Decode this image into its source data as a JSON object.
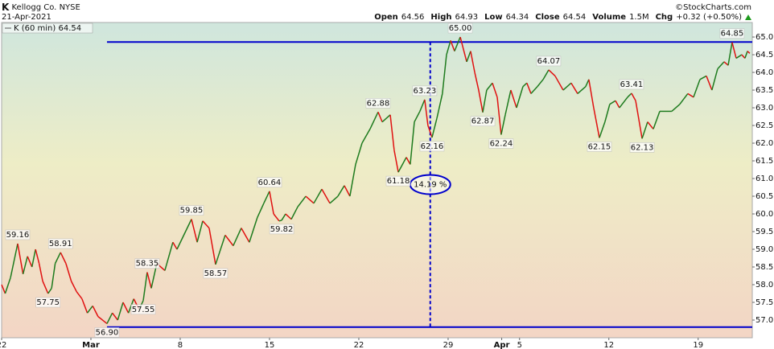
{
  "chart_data": {
    "type": "line",
    "symbol": "K",
    "company": "Kellogg Co.",
    "exchange": "NYSE",
    "date": "21-Apr-2021",
    "credit": "©StockCharts.com",
    "quote": [
      {
        "label": "Open",
        "value": "64.56"
      },
      {
        "label": "High",
        "value": "64.93"
      },
      {
        "label": "Low",
        "value": "64.34"
      },
      {
        "label": "Close",
        "value": "64.54"
      },
      {
        "label": "Volume",
        "value": "1.5M"
      },
      {
        "label": "Chg",
        "value": "+0.32 (+0.50%)"
      }
    ],
    "xlim": [
      0,
      42.03
    ],
    "ylim": [
      56.5,
      65.41
    ],
    "xticks": [
      {
        "value": 0,
        "label": "22"
      },
      {
        "value": 5,
        "label": "Mar"
      },
      {
        "value": 10,
        "label": "8"
      },
      {
        "value": 15,
        "label": "15"
      },
      {
        "value": 20,
        "label": "22"
      },
      {
        "value": 25,
        "label": "29"
      },
      {
        "value": 28,
        "label": "Apr"
      },
      {
        "value": 29,
        "label": "5"
      },
      {
        "value": 34,
        "label": "12"
      },
      {
        "value": 39,
        "label": "19"
      }
    ],
    "yticks": [
      {
        "value": 57,
        "label": "57.0"
      },
      {
        "value": 57.5,
        "label": "57.5"
      },
      {
        "value": 58,
        "label": "58.0"
      },
      {
        "value": 58.5,
        "label": "58.5"
      },
      {
        "value": 59,
        "label": "59.0"
      },
      {
        "value": 59.5,
        "label": "59.5"
      },
      {
        "value": 60,
        "label": "60.0"
      },
      {
        "value": 60.5,
        "label": "60.5"
      },
      {
        "value": 61,
        "label": "61.0"
      },
      {
        "value": 61.5,
        "label": "61.5"
      },
      {
        "value": 62,
        "label": "62.0"
      },
      {
        "value": 62.5,
        "label": "62.5"
      },
      {
        "value": 63,
        "label": "63.0"
      },
      {
        "value": 63.5,
        "label": "63.5"
      },
      {
        "value": 64,
        "label": "64.0"
      },
      {
        "value": 64.5,
        "label": "64.5"
      },
      {
        "value": 65,
        "label": "65.0"
      }
    ],
    "series": [
      {
        "name": "K (60 min) 64.54",
        "up_color": "#1e7b1e",
        "down_color": "#e01010",
        "x": [
          0,
          0.2,
          0.5,
          0.9,
          1.2,
          1.45,
          1.7,
          1.9,
          2.1,
          2.3,
          2.6,
          2.8,
          3.0,
          3.3,
          3.6,
          3.9,
          4.2,
          4.5,
          4.8,
          5.1,
          5.4,
          5.9,
          6.2,
          6.5,
          6.8,
          7.1,
          7.4,
          7.7,
          7.93,
          8.15,
          8.38,
          8.69,
          9.14,
          9.59,
          9.82,
          10.63,
          10.95,
          11.26,
          11.62,
          11.98,
          12.52,
          12.97,
          13.42,
          13.87,
          14.32,
          14.68,
          15.0,
          15.23,
          15.54,
          15.68,
          15.9,
          16.22,
          16.58,
          17.03,
          17.48,
          17.93,
          18.38,
          18.83,
          19.19,
          19.5,
          19.82,
          20.18,
          20.63,
          21.08,
          21.31,
          21.76,
          21.98,
          22.21,
          22.66,
          22.88,
          23.11,
          23.42,
          23.69,
          23.87,
          24.1,
          24.37,
          24.68,
          24.91,
          25.14,
          25.36,
          25.68,
          26.04,
          26.26,
          26.49,
          26.71,
          26.94,
          27.16,
          27.48,
          27.75,
          27.97,
          28.2,
          28.51,
          28.83,
          29.19,
          29.41,
          29.64,
          30.0,
          30.32,
          30.63,
          30.99,
          31.44,
          31.89,
          32.25,
          32.7,
          32.88,
          33.15,
          33.47,
          33.78,
          34.05,
          34.37,
          34.59,
          35.05,
          35.27,
          35.5,
          35.86,
          36.17,
          36.49,
          36.85,
          37.52,
          37.97,
          38.42,
          38.74,
          39.1,
          39.46,
          39.77,
          40.09,
          40.45,
          40.68,
          40.9,
          41.13,
          41.44,
          41.62,
          41.76,
          41.89
        ],
        "values": [
          58.0,
          57.75,
          58.2,
          59.16,
          58.3,
          58.8,
          58.5,
          59.0,
          58.6,
          58.1,
          57.75,
          57.9,
          58.6,
          58.91,
          58.6,
          58.1,
          57.8,
          57.6,
          57.2,
          57.4,
          57.1,
          56.9,
          57.2,
          57.0,
          57.5,
          57.2,
          57.6,
          57.3,
          57.55,
          58.35,
          57.9,
          58.6,
          58.4,
          59.2,
          59.0,
          59.85,
          59.2,
          59.8,
          59.6,
          58.57,
          59.4,
          59.1,
          59.6,
          59.2,
          59.9,
          60.3,
          60.64,
          60.0,
          59.8,
          59.82,
          60.0,
          59.85,
          60.2,
          60.5,
          60.3,
          60.7,
          60.3,
          60.5,
          60.8,
          60.5,
          61.4,
          62.0,
          62.4,
          62.88,
          62.6,
          62.8,
          61.8,
          61.18,
          61.6,
          61.4,
          62.6,
          62.9,
          63.23,
          62.5,
          62.16,
          62.7,
          63.4,
          64.5,
          64.9,
          64.6,
          65.0,
          64.3,
          64.6,
          64.0,
          63.5,
          62.87,
          63.5,
          63.7,
          63.3,
          62.24,
          62.8,
          63.5,
          63.0,
          63.6,
          63.7,
          63.4,
          63.6,
          63.8,
          64.07,
          63.9,
          63.5,
          63.7,
          63.4,
          63.6,
          63.8,
          63.0,
          62.15,
          62.6,
          63.1,
          63.2,
          63.0,
          63.3,
          63.41,
          63.2,
          62.13,
          62.6,
          62.4,
          62.9,
          62.9,
          63.1,
          63.4,
          63.3,
          63.8,
          63.9,
          63.5,
          64.1,
          64.3,
          64.2,
          64.85,
          64.4,
          64.5,
          64.4,
          64.6,
          64.54
        ]
      }
    ],
    "point_labels": {
      "x": [
        0.9,
        2.6,
        3.3,
        5.9,
        7.93,
        8.15,
        10.63,
        11.98,
        15.0,
        15.68,
        21.08,
        22.21,
        23.69,
        24.1,
        25.68,
        26.94,
        27.97,
        30.63,
        33.47,
        35.27,
        35.86,
        40.9
      ],
      "values": [
        59.16,
        57.75,
        58.91,
        56.9,
        57.55,
        58.35,
        59.85,
        58.57,
        60.64,
        59.82,
        62.88,
        61.18,
        63.23,
        62.16,
        65.0,
        62.87,
        62.24,
        64.07,
        62.15,
        63.41,
        62.13,
        64.85
      ],
      "value_labels": [
        "59.16",
        "57.75",
        "58.91",
        "56.90",
        "57.55",
        "58.35",
        "59.85",
        "58.57",
        "60.64",
        "59.82",
        "62.88",
        "61.18",
        "63.23",
        "62.16",
        "65.00",
        "62.87",
        "62.24",
        "64.07",
        "62.15",
        "63.41",
        "62.13",
        "64.85"
      ],
      "position": [
        "above",
        "below",
        "above",
        "below",
        "below",
        "above",
        "above",
        "below",
        "above",
        "below",
        "above",
        "below",
        "above",
        "below",
        "above",
        "below",
        "below",
        "above",
        "below",
        "above",
        "below",
        "above"
      ]
    },
    "line_color": "#0000cc",
    "hlines": [
      {
        "value": 64.86,
        "from": 5.9
      },
      {
        "value": 56.8,
        "from": 5.9
      }
    ],
    "measure": {
      "x": 24.0,
      "label": "14.19 %"
    }
  }
}
